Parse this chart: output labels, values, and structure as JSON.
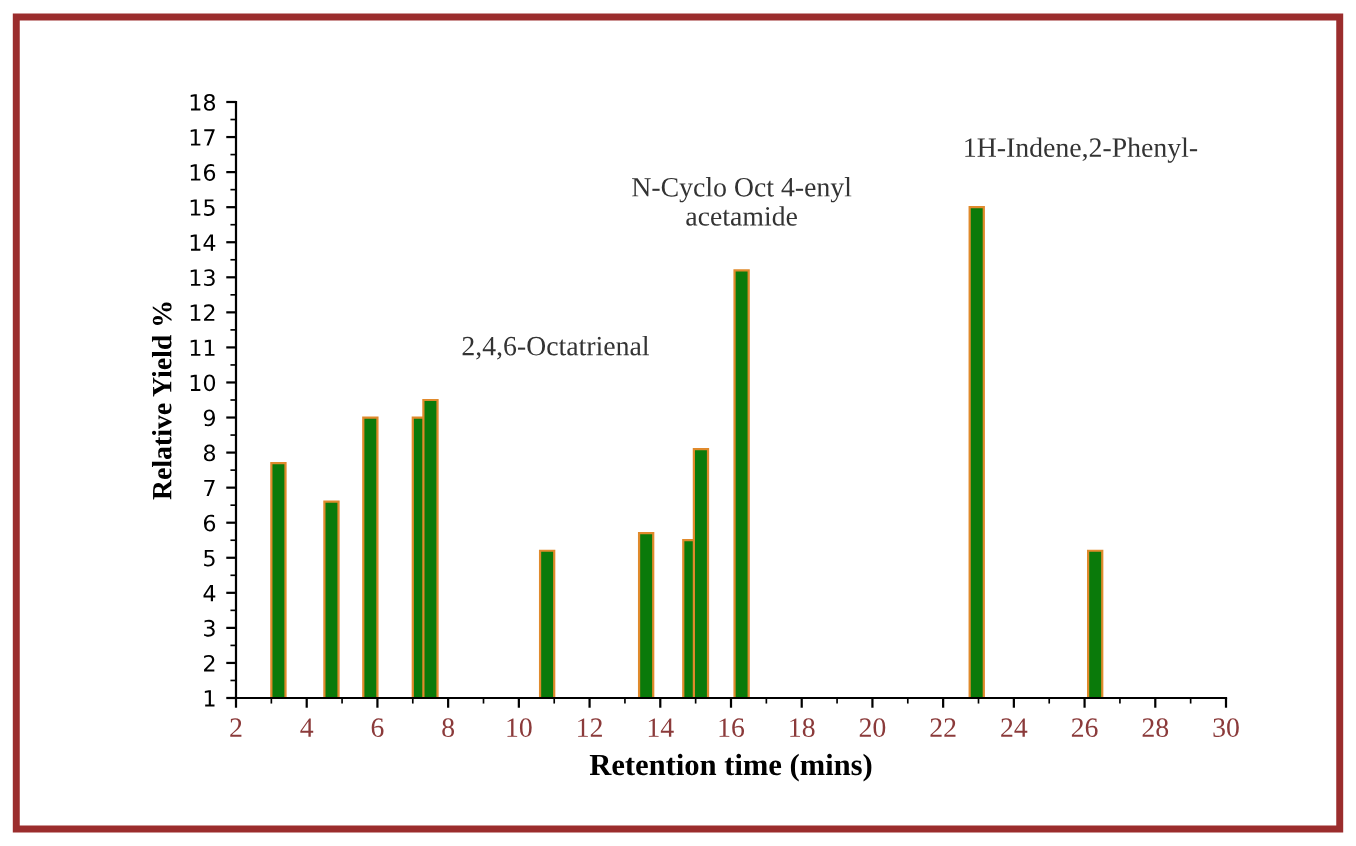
{
  "chart_data": {
    "type": "bar",
    "xlabel": "Retention time (mins)",
    "ylabel": "Relative Yield %",
    "x": [
      3.2,
      4.7,
      5.8,
      7.2,
      7.5,
      10.8,
      13.6,
      14.85,
      15.15,
      16.3,
      22.95,
      26.3
    ],
    "values": [
      7.7,
      6.6,
      9.0,
      9.0,
      9.5,
      5.2,
      5.7,
      5.5,
      8.1,
      13.2,
      15.0,
      5.2
    ],
    "color": "#0a7a0a",
    "xlim": [
      2,
      30
    ],
    "xticks": [
      2,
      4,
      6,
      8,
      10,
      12,
      14,
      16,
      18,
      20,
      22,
      24,
      26,
      28,
      30
    ],
    "ylim": [
      1,
      18
    ],
    "yticks": [
      1,
      2,
      3,
      4,
      5,
      6,
      7,
      8,
      9,
      10,
      11,
      12,
      13,
      14,
      15,
      16,
      17,
      18
    ],
    "grid": false,
    "legend": false,
    "annotations": [
      {
        "text": "2,4,6-Octatrienal",
        "x": 7.5,
        "y": 9.5
      },
      {
        "text": "N-Cyclo Oct 4-enyl\nacetamide",
        "x": 16.3,
        "y": 13.2
      },
      {
        "text": "1H-Indene,2-Phenyl-",
        "x": 22.95,
        "y": 15.0
      }
    ]
  }
}
